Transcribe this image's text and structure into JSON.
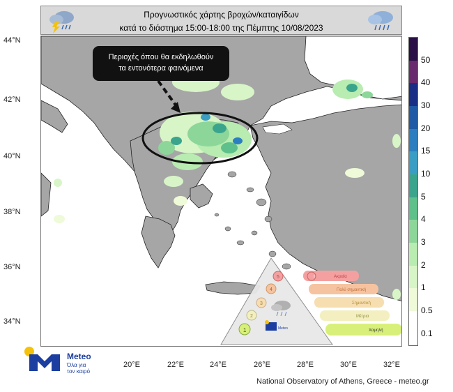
{
  "header": {
    "title_line1": "Προγνωστικός χάρτης βροχών/καταιγίδων",
    "title_line2": "κατά το διάστημα 15:00-18:00 της Πέμπτης 10/08/2023"
  },
  "callout": {
    "line1": "Περιοχές όπου θα εκδηλωθούν",
    "line2": "τα εντονότερα φαινόμενα"
  },
  "axes": {
    "lat_labels": [
      "44°N",
      "42°N",
      "40°N",
      "38°N",
      "36°N",
      "34°N"
    ],
    "lon_labels": [
      "20°E",
      "22°E",
      "24°E",
      "26°E",
      "28°E",
      "30°E",
      "32°E"
    ]
  },
  "colorbar": {
    "labels": [
      "50",
      "40",
      "30",
      "20",
      "15",
      "10",
      "5",
      "4",
      "3",
      "2",
      "1",
      "0.5",
      "0.1"
    ],
    "colors": [
      "#2a1046",
      "#6a2a6e",
      "#1a2e86",
      "#1f5aa6",
      "#2b7fc0",
      "#3a9ec4",
      "#3aa58c",
      "#5ec08a",
      "#8dd69a",
      "#b8ecb0",
      "#d8f5c8",
      "#eefad8",
      "#ffffff"
    ]
  },
  "legend": {
    "levels": [
      "Ακραία",
      "Πολύ σημαντική",
      "Σημαντική",
      "Μέτρια",
      "Χαμηλή"
    ],
    "level_numbers": [
      "5",
      "4",
      "3",
      "2",
      "1"
    ],
    "level_colors": [
      "#f4a0a0",
      "#f6c3a0",
      "#f7deb0",
      "#f3efc0",
      "#d8f07a"
    ],
    "brand": "Meteo"
  },
  "logo": {
    "name": "Meteo",
    "tagline_line1": "Όλα για",
    "tagline_line2": "τον καιρό"
  },
  "credit": "National Observatory of Athens, Greece - meteo.gr"
}
